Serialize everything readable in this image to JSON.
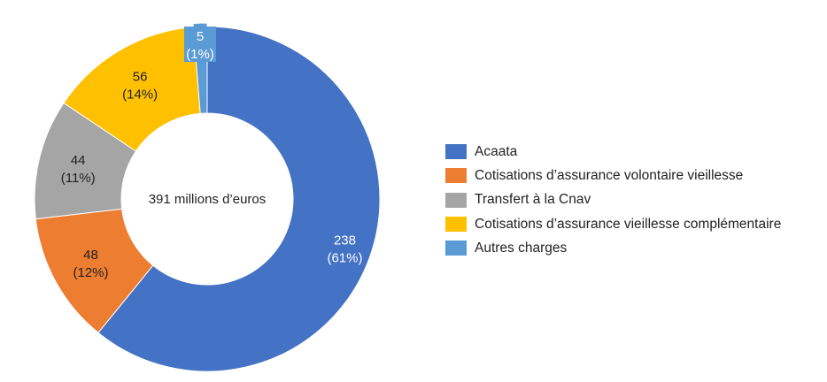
{
  "chart_data": {
    "type": "pie",
    "variant": "donut",
    "center_label": "391 millions d’euros",
    "legend_position": "right",
    "slices": [
      {
        "name": "Acaata",
        "value": 238,
        "percent_label": "(61%)",
        "color": "#4472C4",
        "label_color": "#ffffff"
      },
      {
        "name": "Cotisations d’assurance volontaire vieillesse",
        "value": 48,
        "percent_label": "(12%)",
        "color": "#ED7D31",
        "label_color": "#222222"
      },
      {
        "name": "Transfert à la Cnav",
        "value": 44,
        "percent_label": "(11%)",
        "color": "#A5A5A5",
        "label_color": "#222222"
      },
      {
        "name": "Cotisations d’assurance vieillesse complémentaire",
        "value": 56,
        "percent_label": "(14%)",
        "color": "#FFC000",
        "label_color": "#222222"
      },
      {
        "name": "Autres charges",
        "value": 5,
        "percent_label": "(1%)",
        "color": "#5B9BD5",
        "label_color": "#ffffff"
      }
    ]
  }
}
